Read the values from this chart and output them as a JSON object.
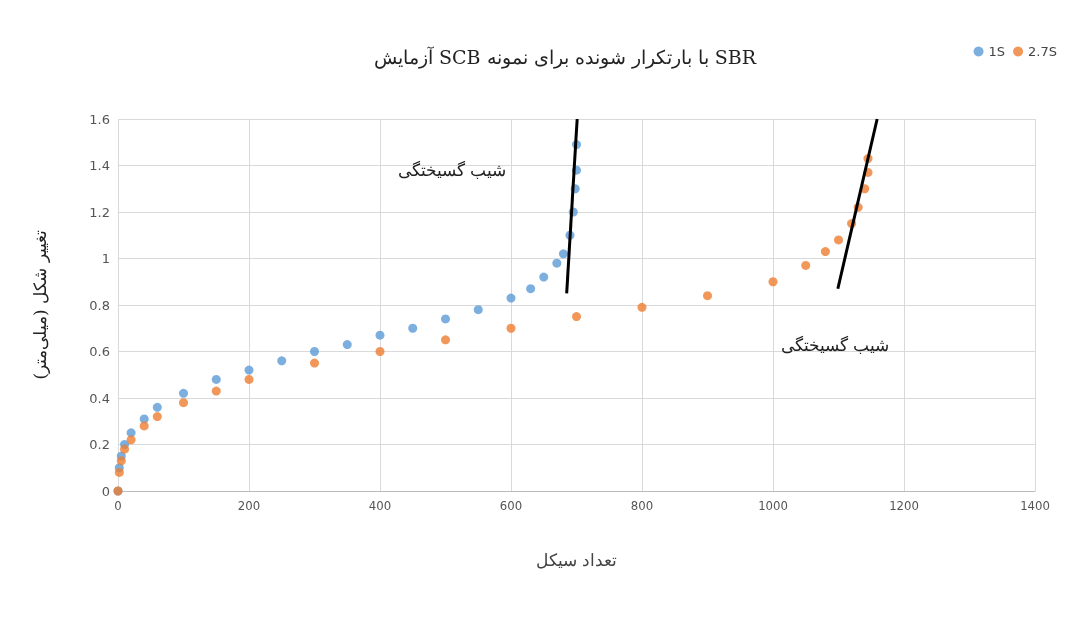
{
  "chart_data": {
    "type": "scatter",
    "title": "آزمایش SCB با بارتکرار شونده برای نمونه SBR",
    "xlabel": "تعداد سیکل",
    "ylabel": "تغییر شکل (میلی‌متر)",
    "xlim": [
      0,
      1400
    ],
    "xticks": [
      0,
      200,
      400,
      600,
      800,
      1000,
      1200,
      1400
    ],
    "ylim": [
      0,
      1.6
    ],
    "yticks": [
      0,
      0.2,
      0.4,
      0.6,
      0.8,
      1,
      1.2,
      1.4,
      1.6
    ],
    "grid": true,
    "legend": "top right",
    "marker": "circle",
    "series": [
      {
        "name": "1S",
        "color": "#5b9bd5",
        "x": [
          0,
          2,
          5,
          10,
          20,
          40,
          60,
          100,
          150,
          200,
          250,
          300,
          350,
          400,
          450,
          500,
          550,
          600,
          630,
          650,
          670,
          680,
          690,
          695,
          698,
          700,
          700
        ],
        "values": [
          0,
          0.1,
          0.15,
          0.2,
          0.25,
          0.31,
          0.36,
          0.42,
          0.48,
          0.52,
          0.56,
          0.6,
          0.63,
          0.67,
          0.7,
          0.74,
          0.78,
          0.83,
          0.87,
          0.92,
          0.98,
          1.02,
          1.1,
          1.2,
          1.3,
          1.38,
          1.49
        ]
      },
      {
        "name": "2.7S",
        "color": "#ed7d31",
        "x": [
          0,
          2,
          5,
          10,
          20,
          40,
          60,
          100,
          150,
          200,
          300,
          400,
          500,
          600,
          700,
          800,
          900,
          1000,
          1050,
          1080,
          1100,
          1120,
          1130,
          1140,
          1145,
          1145
        ],
        "values": [
          0,
          0.08,
          0.13,
          0.18,
          0.22,
          0.28,
          0.32,
          0.38,
          0.43,
          0.48,
          0.55,
          0.6,
          0.65,
          0.7,
          0.75,
          0.79,
          0.84,
          0.9,
          0.97,
          1.03,
          1.08,
          1.15,
          1.22,
          1.3,
          1.37,
          1.43
        ]
      },
      {
        "type": "line",
        "color": "#000000",
        "marker": "none",
        "x": [
          685,
          701
        ],
        "values": [
          0.85,
          1.6
        ]
      },
      {
        "type": "line",
        "color": "#000000",
        "marker": "none",
        "x": [
          1099,
          1159
        ],
        "values": [
          0.87,
          1.6
        ]
      }
    ],
    "annotations": [
      "شیب گسیختگی",
      "شیب گسیختگی"
    ]
  }
}
